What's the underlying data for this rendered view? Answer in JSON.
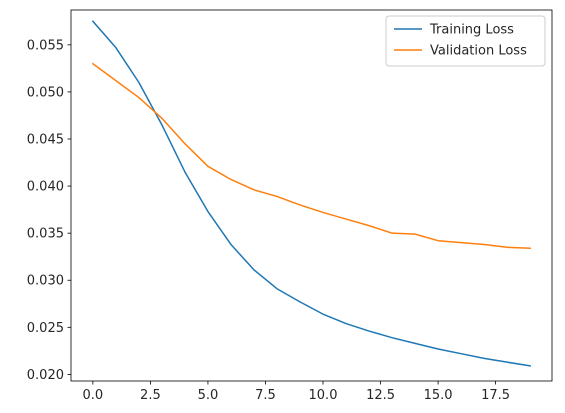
{
  "chart_data": {
    "type": "line",
    "title": "",
    "xlabel": "",
    "ylabel": "",
    "x": [
      0,
      1,
      2,
      3,
      4,
      5,
      6,
      7,
      8,
      9,
      10,
      11,
      12,
      13,
      14,
      15,
      16,
      17,
      18,
      19
    ],
    "xlim": [
      -0.95,
      19.95
    ],
    "ylim": [
      0.0193,
      0.0587
    ],
    "xticks": [
      0.0,
      2.5,
      5.0,
      7.5,
      10.0,
      12.5,
      15.0,
      17.5
    ],
    "xtick_labels": [
      "0.0",
      "2.5",
      "5.0",
      "7.5",
      "10.0",
      "12.5",
      "15.0",
      "17.5"
    ],
    "yticks": [
      0.02,
      0.025,
      0.03,
      0.035,
      0.04,
      0.045,
      0.05,
      0.055
    ],
    "ytick_labels": [
      "0.020",
      "0.025",
      "0.030",
      "0.035",
      "0.040",
      "0.045",
      "0.050",
      "0.055"
    ],
    "grid": false,
    "legend_position": "top-right",
    "series": [
      {
        "name": "Training Loss",
        "color": "#1f77b4",
        "values": [
          0.0575,
          0.0547,
          0.051,
          0.0465,
          0.0415,
          0.0373,
          0.0338,
          0.0311,
          0.0291,
          0.0277,
          0.0264,
          0.0254,
          0.0246,
          0.0239,
          0.0233,
          0.0227,
          0.0222,
          0.0217,
          0.0213,
          0.0209
        ]
      },
      {
        "name": "Validation Loss",
        "color": "#ff7f0e",
        "values": [
          0.053,
          0.0512,
          0.0494,
          0.0472,
          0.0445,
          0.0421,
          0.0407,
          0.0396,
          0.0389,
          0.038,
          0.0372,
          0.0365,
          0.0358,
          0.035,
          0.0349,
          0.0342,
          0.034,
          0.0338,
          0.0335,
          0.0334
        ]
      }
    ]
  }
}
